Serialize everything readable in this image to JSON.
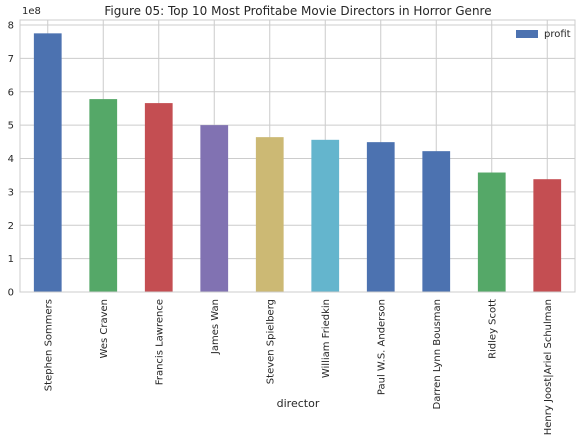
{
  "chart_data": {
    "type": "bar",
    "title": "Figure 05: Top 10 Most Profitabe Movie Directors in Horror Genre",
    "xlabel": "director",
    "ylabel": "",
    "y_offset_label": "1e8",
    "ylim": [
      0,
      8.15
    ],
    "yticks": [
      "0",
      "1",
      "2",
      "3",
      "4",
      "5",
      "6",
      "7",
      "8"
    ],
    "grid": true,
    "legend": {
      "position": "top-right",
      "entries": [
        "profit"
      ]
    },
    "categories": [
      "Stephen Sommers",
      "Wes Craven",
      "Francis Lawrence",
      "James Wan",
      "Steven Spielberg",
      "William Friedkin",
      "Paul W.S. Anderson",
      "Darren Lynn Bousman",
      "Ridley Scott",
      "Henry Joost|Ariel Schulman"
    ],
    "series": [
      {
        "name": "profit",
        "values": [
          7.75,
          5.78,
          5.66,
          5.0,
          4.64,
          4.56,
          4.49,
          4.22,
          3.58,
          3.38
        ]
      }
    ],
    "bar_colors": [
      "#4c72b0",
      "#55a868",
      "#c44e52",
      "#8172b2",
      "#ccb974",
      "#64b5cd",
      "#4c72b0",
      "#4c72b0",
      "#55a868",
      "#c44e52"
    ],
    "legend_color": "#4c72b0"
  }
}
